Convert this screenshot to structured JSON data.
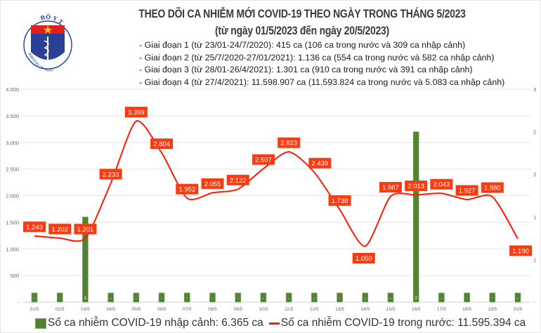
{
  "logo": {
    "text_top": "BỘ Y TẾ",
    "text_bottom": "MINISTRY OF HEALTH"
  },
  "title": {
    "line1": "THEO DÕI CA NHIỄM MỚI COVID-19 THEO NGÀY TRONG THÁNG 5/2023",
    "line2": "(từ ngày 01/5/2023 đến ngày 20/5/2023)"
  },
  "notes": [
    "- Giai đoạn 1 (từ 23/01-24/7/2020): 415 ca (106 ca trong nước và 309 ca nhập cảnh)",
    "- Giai đoạn 2 (từ 25/7/2020-27/01/2021): 1.136 ca (554 ca trong nước và 582 ca nhập cảnh)",
    "- Giai đoạn 3 (từ 28/01-26/4/2021): 1.301 ca (910 ca trong nước và 391 ca nhập cảnh)",
    "- Giai đoạn 4 (từ 27/4/2021): 11.598.907 ca (11.593.824 ca trong nước và 5.083 ca nhập cảnh)"
  ],
  "chart_data": {
    "type": "bar+line",
    "categories": [
      "01/5",
      "02/5",
      "03/5",
      "04/5",
      "05/5",
      "06/5",
      "07/5",
      "08/5",
      "09/5",
      "10/5",
      "11/5",
      "12/5",
      "13/5",
      "14/5",
      "15/5",
      "16/5",
      "17/5",
      "18/5",
      "19/5",
      "20/5"
    ],
    "series": [
      {
        "name": "Số ca nhiễm COVID-19 nhập cảnh: 6.365 ca",
        "type": "bar",
        "axis": "right",
        "color": "#548235",
        "values": [
          0,
          0,
          1,
          0,
          0,
          0,
          0,
          0,
          0,
          0,
          0,
          0,
          0,
          0,
          0,
          2,
          0,
          0,
          0,
          0
        ],
        "labels": [
          "-",
          "-",
          "1",
          "-",
          "-",
          "-",
          "-",
          "-",
          "-",
          "-",
          "-",
          "-",
          "-",
          "-",
          "-",
          "2",
          "-",
          "-",
          "-",
          "-"
        ]
      },
      {
        "name": "Số ca nhiễm COVID-19 trong nước: 11.595.394 ca",
        "type": "line",
        "axis": "left",
        "color": "#ff1a00",
        "values": [
          1243,
          1202,
          1201,
          2233,
          3399,
          2804,
          1952,
          2055,
          2122,
          2507,
          2823,
          2439,
          1738,
          1050,
          1987,
          2013,
          2043,
          1927,
          1980,
          1190
        ],
        "labels": [
          "1.243",
          "1.202",
          "1.201",
          "2.233",
          "3.399",
          "2.804",
          "1.952",
          "2.055",
          "2.122",
          "2.507",
          "2.823",
          "2.439",
          "1.738",
          "1.050",
          "1.987",
          "2.013",
          "2.043",
          "1.927",
          "1.980",
          "1.190"
        ]
      }
    ],
    "ylim_left": [
      0,
      4000
    ],
    "yticks_left": [
      "-",
      "500",
      "1.000",
      "1.500",
      "2.000",
      "2.500",
      "3.000",
      "3.500",
      "4.000"
    ],
    "ylim_right": [
      0,
      3
    ],
    "yticks_right": [
      "-",
      "1",
      "1",
      "2",
      "2",
      "3"
    ],
    "grid": true,
    "legend": "bottom"
  }
}
